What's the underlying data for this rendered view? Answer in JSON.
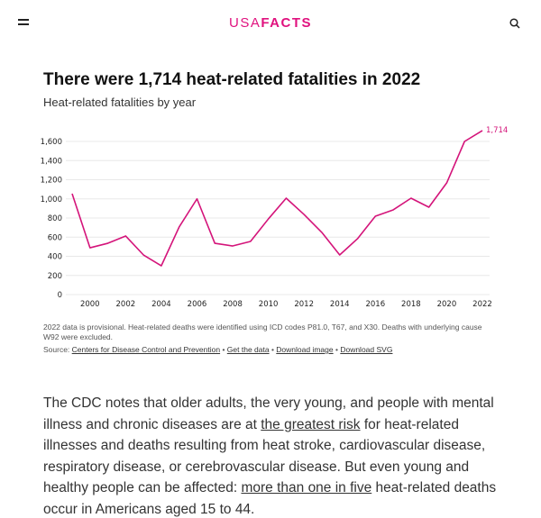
{
  "header": {
    "logo_light": "USA",
    "logo_bold": "FACTS",
    "accent": "#e0117e"
  },
  "title": "There were 1,714 heat-related fatalities in 2022",
  "subtitle": "Heat-related fatalities by year",
  "chart_data": {
    "type": "line",
    "x": [
      1999,
      2000,
      2001,
      2002,
      2003,
      2004,
      2005,
      2006,
      2007,
      2008,
      2009,
      2010,
      2011,
      2012,
      2013,
      2014,
      2015,
      2016,
      2017,
      2018,
      2019,
      2020,
      2021,
      2022
    ],
    "series": [
      {
        "values": [
          1054,
          489,
          536,
          612,
          414,
          301,
          706,
          1000,
          536,
          508,
          555,
          790,
          1007,
          837,
          649,
          414,
          584,
          819,
          885,
          1007,
          913,
          1167,
          1600,
          1714
        ],
        "color": "#d4147a"
      }
    ],
    "end_label": "1,714",
    "xticks": [
      "2000",
      "2002",
      "2004",
      "2006",
      "2008",
      "2010",
      "2012",
      "2014",
      "2016",
      "2018",
      "2020",
      "2022"
    ],
    "yticks": [
      "0",
      "200",
      "400",
      "600",
      "800",
      "1,000",
      "1,200",
      "1,400",
      "1,600"
    ],
    "ylim": [
      0,
      1600
    ],
    "grid": true
  },
  "notes": "2022 data is provisional. Heat-related deaths were identified using ICD codes P81.0, T67, and X30. Deaths with underlying cause W92 were excluded.",
  "source": {
    "label": "Source:",
    "links": [
      "Centers for Disease Control and Prevention",
      "Get the data",
      "Download image",
      "Download SVG"
    ],
    "sep": " • "
  },
  "body": {
    "t1": "The CDC notes that older adults, the very young, and people with mental illness and chronic diseases are at ",
    "l1": "the greatest risk",
    "t2": " for heat-related illnesses and deaths resulting from heat stroke, cardiovascular disease, respiratory disease, or cerebrovascular disease. But even young and healthy people can be affected: ",
    "l2": "more than one in five",
    "t3": " heat-related deaths occur in Americans aged 15 to 44."
  }
}
